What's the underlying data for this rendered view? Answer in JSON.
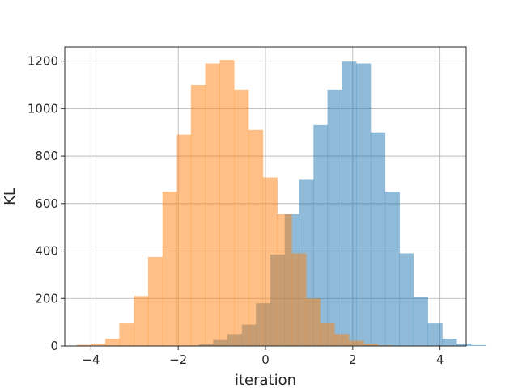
{
  "chart_data": {
    "type": "bar",
    "subtype": "overlapping-histogram",
    "title": "",
    "xlabel": "iteration",
    "ylabel": "KL",
    "xlim": [
      -4.6,
      4.6
    ],
    "ylim": [
      0,
      1260
    ],
    "grid": true,
    "legend": "none",
    "xticks": [
      -4,
      -2,
      0,
      2,
      4
    ],
    "xtick_labels": [
      "−4",
      "−2",
      "0",
      "2",
      "4"
    ],
    "yticks": [
      0,
      200,
      400,
      600,
      800,
      1000,
      1200
    ],
    "ytick_labels": [
      "0",
      "200",
      "400",
      "600",
      "800",
      "1000",
      "1200"
    ],
    "series": [
      {
        "color": "#1f77b4",
        "opacity": 0.5,
        "bins": [
          [
            -1.86,
            -1.53,
            2
          ],
          [
            -1.53,
            -1.2,
            8
          ],
          [
            -1.2,
            -0.87,
            25
          ],
          [
            -0.87,
            -0.54,
            50
          ],
          [
            -0.54,
            -0.22,
            90
          ],
          [
            -0.22,
            0.11,
            180
          ],
          [
            0.11,
            0.44,
            385
          ],
          [
            0.44,
            0.77,
            555
          ],
          [
            0.77,
            1.1,
            700
          ],
          [
            1.1,
            1.42,
            930
          ],
          [
            1.42,
            1.75,
            1080
          ],
          [
            1.75,
            2.08,
            1198
          ],
          [
            2.08,
            2.41,
            1190
          ],
          [
            2.41,
            2.74,
            900
          ],
          [
            2.74,
            3.07,
            650
          ],
          [
            3.07,
            3.39,
            390
          ],
          [
            3.39,
            3.72,
            205
          ],
          [
            3.72,
            4.05,
            95
          ],
          [
            4.05,
            4.38,
            30
          ],
          [
            4.38,
            4.71,
            10
          ],
          [
            4.71,
            5.04,
            4
          ]
        ]
      },
      {
        "color": "#ff7f0e",
        "opacity": 0.5,
        "bins": [
          [
            -4.33,
            -4.0,
            5
          ],
          [
            -4.0,
            -3.67,
            10
          ],
          [
            -3.67,
            -3.35,
            30
          ],
          [
            -3.35,
            -3.02,
            95
          ],
          [
            -3.02,
            -2.69,
            210
          ],
          [
            -2.69,
            -2.36,
            375
          ],
          [
            -2.36,
            -2.03,
            650
          ],
          [
            -2.03,
            -1.71,
            890
          ],
          [
            -1.71,
            -1.38,
            1100
          ],
          [
            -1.38,
            -1.05,
            1190
          ],
          [
            -1.05,
            -0.72,
            1205
          ],
          [
            -0.72,
            -0.39,
            1080
          ],
          [
            -0.39,
            -0.06,
            910
          ],
          [
            -0.06,
            0.27,
            710
          ],
          [
            0.27,
            0.6,
            555
          ],
          [
            0.6,
            0.93,
            390
          ],
          [
            0.93,
            1.25,
            200
          ],
          [
            1.25,
            1.58,
            95
          ],
          [
            1.58,
            1.91,
            50
          ],
          [
            1.91,
            2.24,
            22
          ],
          [
            2.24,
            2.57,
            10
          ],
          [
            2.57,
            2.9,
            3
          ]
        ]
      }
    ]
  }
}
